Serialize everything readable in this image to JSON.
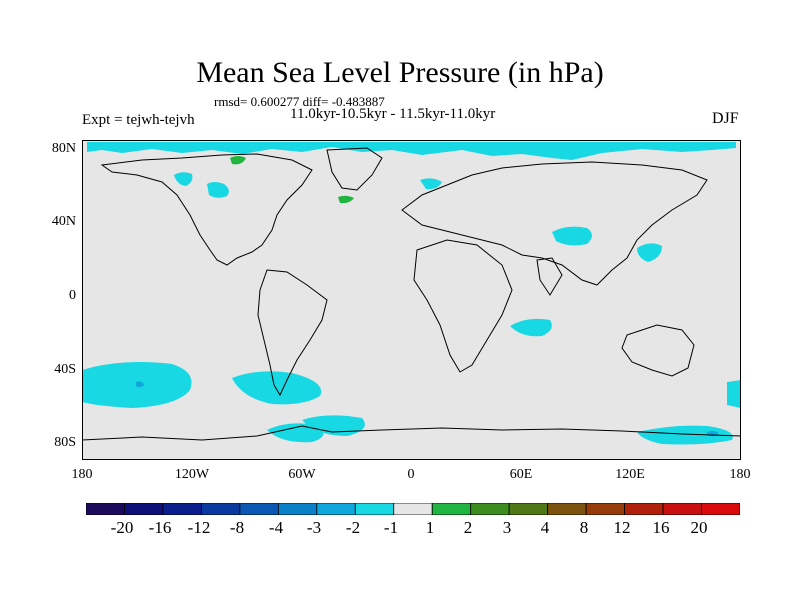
{
  "title": "Mean Sea Level Pressure (in hPa)",
  "stats": "rmsd= 0.600277 diff= -0.483887",
  "periods": "11.0kyr-10.5kyr - 11.5kyr-11.0kyr",
  "experiment": "Expt = tejwh-tejvh",
  "season": "DJF",
  "lat_labels": [
    "80N",
    "40N",
    "0",
    "40S",
    "80S"
  ],
  "lon_labels": [
    "180",
    "120W",
    "60W",
    "0",
    "60E",
    "120E",
    "180"
  ],
  "colorbar": {
    "labels": [
      "-20",
      "-16",
      "-12",
      "-8",
      "-4",
      "-3",
      "-2",
      "-1",
      "1",
      "2",
      "3",
      "4",
      "8",
      "12",
      "16",
      "20"
    ],
    "colors": [
      "#1c0a5c",
      "#10107a",
      "#0a1e8c",
      "#0a3aa0",
      "#0a58b4",
      "#0a80c8",
      "#10a8dc",
      "#18d8e4",
      "#e6e6e6",
      "#20b440",
      "#3c8c20",
      "#507818",
      "#7c5410",
      "#963c0a",
      "#b0200a",
      "#c81010",
      "#d80a0a"
    ]
  },
  "map_colors": {
    "background": "#e6e6e6",
    "coast": "#000000",
    "negative_light": "#18d8e4",
    "negative_medium": "#10a8dc",
    "positive_light": "#20b440"
  },
  "patches": [
    {
      "name": "arctic-band",
      "level": "-2 to -1"
    },
    {
      "name": "canada-patch",
      "level": "-2 to -1"
    },
    {
      "name": "east-pacific-patch",
      "level": "-2 to -1"
    },
    {
      "name": "north-pacific-patch",
      "level": "-2 to -1"
    },
    {
      "name": "indian-ocean-patch",
      "level": "-2 to -1"
    },
    {
      "name": "south-pacific-patch",
      "level": "-3 to -1"
    },
    {
      "name": "drake-passage-patch",
      "level": "-2 to -1"
    },
    {
      "name": "antarctic-patches",
      "level": "-2 to -1"
    },
    {
      "name": "greenland-patch",
      "level": "1 to 2"
    }
  ]
}
